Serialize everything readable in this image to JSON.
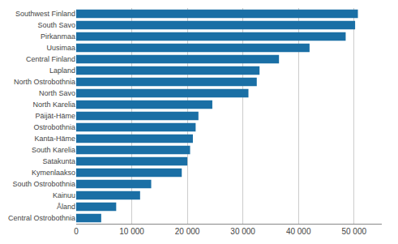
{
  "chart_data": {
    "type": "bar",
    "orientation": "horizontal",
    "categories": [
      "Central Ostrobothnia",
      "Åland",
      "Kainuu",
      "South Ostrobothnia",
      "Kymenlaakso",
      "Satakunta",
      "South Karelia",
      "Kanta-Häme",
      "Ostrobothnia",
      "Päijät-Häme",
      "North Karelia",
      "North Savo",
      "North Ostrobothnia",
      "Lapland",
      "Central Finland",
      "Uusimaa",
      "Pirkanmaa",
      "South Savo",
      "Southwest Finland"
    ],
    "values": [
      4500,
      7200,
      11500,
      13500,
      19000,
      20000,
      20500,
      21000,
      21500,
      22000,
      24500,
      31000,
      32500,
      33000,
      36500,
      42000,
      48500,
      50200,
      50700
    ],
    "color": "#1a6fa5",
    "xlim": [
      0,
      55000
    ],
    "xticks": [
      0,
      {
        "value": 10000,
        "label": "10 000"
      },
      {
        "value": 20000,
        "label": "20 000"
      },
      {
        "value": 30000,
        "label": "30 000"
      },
      {
        "value": 40000,
        "label": "40 000"
      },
      {
        "value": 50000,
        "label": "50 000"
      }
    ],
    "grid": true
  }
}
